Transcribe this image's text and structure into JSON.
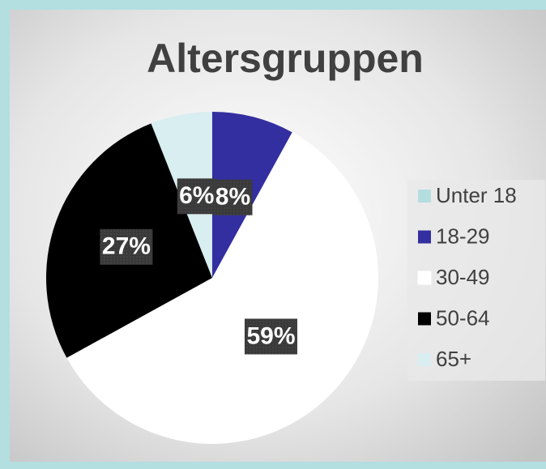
{
  "chart_data": {
    "type": "pie",
    "title": "Altersgruppen",
    "categories": [
      "Unter 18",
      "18-29",
      "30-49",
      "50-64",
      "65+"
    ],
    "values": [
      0,
      8,
      59,
      27,
      6
    ],
    "value_labels": [
      null,
      "8%",
      "59%",
      "27%",
      "6%"
    ],
    "colors": [
      "#b4dde0",
      "#332fa0",
      "#ffffff",
      "#000000",
      "#d8eef0"
    ],
    "legend": "right"
  }
}
